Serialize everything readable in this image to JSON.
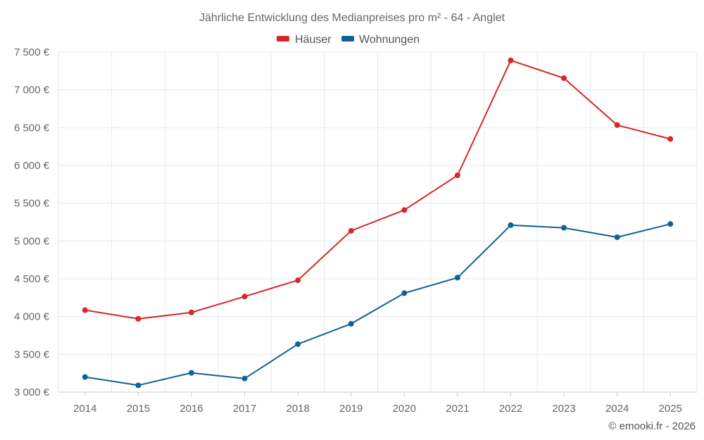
{
  "chart_data": {
    "type": "line",
    "title": "Jährliche Entwicklung des Medianpreises pro m² - 64 - Anglet",
    "categories": [
      "2014",
      "2015",
      "2016",
      "2017",
      "2018",
      "2019",
      "2020",
      "2021",
      "2022",
      "2023",
      "2024",
      "2025"
    ],
    "series": [
      {
        "name": "Häuser",
        "color": "#d62728",
        "values": [
          4085,
          3970,
          4055,
          4265,
          4480,
          5135,
          5410,
          5870,
          7390,
          7155,
          6535,
          6350
        ]
      },
      {
        "name": "Wohnungen",
        "color": "#0f6299",
        "values": [
          3200,
          3090,
          3255,
          3180,
          3635,
          3905,
          4310,
          4515,
          5210,
          5175,
          5050,
          5225
        ]
      }
    ],
    "ylim": [
      3000,
      7500
    ],
    "yticks": [
      3000,
      3500,
      4000,
      4500,
      5000,
      5500,
      6000,
      6500,
      7000,
      7500
    ],
    "ytick_labels": [
      "3 000 €",
      "3 500 €",
      "4 000 €",
      "4 500 €",
      "5 000 €",
      "5 500 €",
      "6 000 €",
      "6 500 €",
      "7 000 €",
      "7 500 €"
    ],
    "xlabel": "",
    "ylabel": "",
    "grid": true,
    "legend_position": "top-center"
  },
  "credit": "© emooki.fr - 2026"
}
